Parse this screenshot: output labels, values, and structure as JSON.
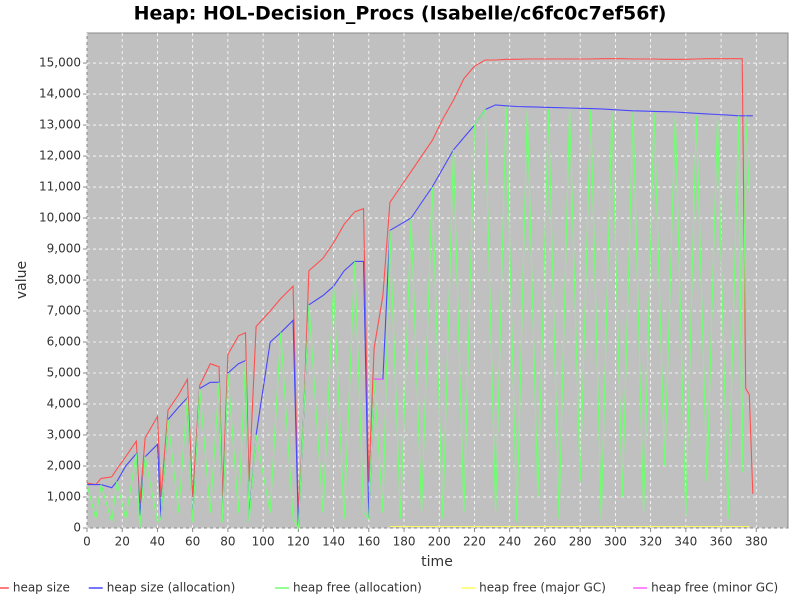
{
  "chart_data": {
    "type": "line",
    "title": "Heap: HOL-Decision_Procs (Isabelle/c6fc0c7ef56f)",
    "x_label": "time",
    "y_label": "value",
    "xlim": [
      0,
      398
    ],
    "ylim": [
      0,
      15970
    ],
    "xticks": [
      0,
      20,
      40,
      60,
      80,
      100,
      120,
      140,
      160,
      180,
      200,
      220,
      240,
      260,
      280,
      300,
      320,
      340,
      360,
      380
    ],
    "yticks": [
      0,
      {
        "value": 1000,
        "label": "1,000"
      },
      {
        "value": 2000,
        "label": "2,000"
      },
      {
        "value": 3000,
        "label": "3,000"
      },
      {
        "value": 4000,
        "label": "4,000"
      },
      {
        "value": 5000,
        "label": "5,000"
      },
      {
        "value": 6000,
        "label": "6,000"
      },
      {
        "value": 7000,
        "label": "7,000"
      },
      {
        "value": 8000,
        "label": "8,000"
      },
      {
        "value": 9000,
        "label": "9,000"
      },
      {
        "value": 10000,
        "label": "10,000"
      },
      {
        "value": 11000,
        "label": "11,000"
      },
      {
        "value": 12000,
        "label": "12,000"
      },
      {
        "value": 13000,
        "label": "13,000"
      },
      {
        "value": 14000,
        "label": "14,000"
      },
      {
        "value": 15000,
        "label": "15,000"
      }
    ],
    "grid": true,
    "legend": "bottom",
    "x": [
      0,
      5,
      8,
      14,
      17,
      22,
      28,
      30,
      33,
      40,
      42,
      46,
      52,
      57,
      60,
      64,
      70,
      75,
      77,
      80,
      86,
      90,
      92,
      96,
      104,
      110,
      117,
      120,
      123,
      126,
      134,
      140,
      146,
      152,
      157,
      160,
      163,
      168,
      172,
      178,
      184,
      190,
      196,
      202,
      208,
      214,
      220,
      226,
      232,
      238,
      244,
      250,
      256,
      262,
      268,
      274,
      280,
      286,
      292,
      298,
      304,
      310,
      316,
      322,
      328,
      334,
      340,
      346,
      352,
      358,
      364,
      370,
      372,
      374,
      376,
      378
    ],
    "series": [
      {
        "name": "heap size",
        "color": "#ff5050",
        "values": [
          1450,
          1400,
          1600,
          1650,
          1900,
          2300,
          2800,
          800,
          2900,
          3600,
          1000,
          3800,
          4300,
          4800,
          1000,
          4600,
          5300,
          5200,
          1000,
          5600,
          6200,
          6300,
          1500,
          6500,
          7000,
          7400,
          7800,
          500,
          3600,
          8300,
          8700,
          9200,
          9800,
          10200,
          10300,
          1500,
          5800,
          7500,
          10500,
          11000,
          11500,
          12000,
          12500,
          13200,
          13800,
          14500,
          14900,
          15100,
          15100,
          15120,
          15120,
          15130,
          15130,
          15130,
          15130,
          15130,
          15130,
          15130,
          15140,
          15140,
          15140,
          15130,
          15130,
          15130,
          15120,
          15120,
          15120,
          15130,
          15140,
          15140,
          15140,
          15140,
          15140,
          4500,
          4300,
          1100
        ]
      },
      {
        "name": "heap size (allocation)",
        "color": "#4848ff",
        "values": [
          1400,
          1400,
          1400,
          1300,
          1500,
          2000,
          2400,
          400,
          2300,
          2700,
          300,
          3500,
          3900,
          4200,
          300,
          4500,
          4700,
          4700,
          300,
          5000,
          5300,
          5400,
          300,
          3000,
          6000,
          6300,
          6700,
          0,
          3600,
          7200,
          7500,
          7800,
          8300,
          8600,
          8600,
          300,
          4800,
          4800,
          9600,
          9800,
          10000,
          10500,
          11000,
          11600,
          12200,
          12600,
          13000,
          13500,
          13650,
          13620,
          13600,
          13590,
          13580,
          13570,
          13560,
          13550,
          13540,
          13530,
          13520,
          13500,
          13480,
          13460,
          13450,
          13440,
          13430,
          13420,
          13400,
          13380,
          13360,
          13340,
          13320,
          13300,
          13300,
          13300,
          13300,
          13300
        ]
      },
      {
        "name": "heap free (allocation)",
        "color": "#70ff70",
        "values": [
          1400,
          300,
          1400,
          200,
          1500,
          300,
          2400,
          0,
          2300,
          200,
          300,
          3500,
          500,
          4200,
          200,
          4500,
          500,
          4700,
          200,
          5000,
          500,
          5400,
          200,
          3000,
          500,
          6300,
          300,
          0,
          3600,
          7200,
          500,
          7800,
          300,
          8600,
          500,
          300,
          4800,
          500,
          9600,
          300,
          10000,
          500,
          11000,
          300,
          12200,
          500,
          13000,
          13500,
          500,
          13600,
          200,
          13500,
          1000,
          13500,
          300,
          13500,
          1500,
          13500,
          300,
          13400,
          1000,
          13400,
          500,
          13400,
          2000,
          13300,
          400,
          13300,
          1500,
          13200,
          300,
          13300,
          1800,
          13300,
          10800,
          null
        ]
      },
      {
        "name": "heap free (major GC)",
        "color": "#ffff60",
        "values": [
          null,
          null,
          null,
          null,
          null,
          null,
          null,
          null,
          null,
          null,
          null,
          null,
          null,
          null,
          null,
          null,
          null,
          null,
          null,
          null,
          null,
          null,
          null,
          null,
          null,
          null,
          null,
          null,
          null,
          null,
          null,
          null,
          null,
          null,
          null,
          null,
          null,
          null,
          50,
          50,
          50,
          50,
          50,
          50,
          50,
          50,
          50,
          50,
          50,
          50,
          50,
          50,
          50,
          50,
          50,
          50,
          50,
          50,
          50,
          50,
          50,
          50,
          50,
          50,
          50,
          50,
          50,
          50,
          50,
          50,
          50,
          50,
          50,
          50,
          50,
          null
        ]
      },
      {
        "name": "heap free (minor GC)",
        "color": "#ff60ff",
        "values": [
          null,
          null,
          null,
          null,
          null,
          null,
          null,
          null,
          null,
          null,
          null,
          null,
          null,
          null,
          null,
          null,
          null,
          null,
          null,
          null,
          null,
          null,
          null,
          null,
          null,
          null,
          null,
          null,
          null,
          null,
          null,
          null,
          null,
          null,
          null,
          null,
          4800,
          4800,
          null,
          null,
          null,
          null,
          null,
          null,
          null,
          null,
          null,
          null,
          null,
          null,
          null,
          null,
          null,
          null,
          null,
          null,
          null,
          null,
          null,
          null,
          null,
          null,
          null,
          null,
          null,
          null,
          null,
          null,
          null,
          null,
          null,
          null,
          null,
          null,
          null,
          null
        ]
      }
    ]
  }
}
